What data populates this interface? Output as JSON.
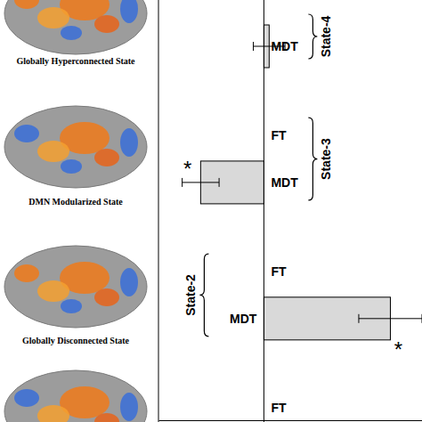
{
  "chart_data": {
    "type": "bar",
    "orientation": "horizontal",
    "categories": [
      "MDT",
      "FT",
      "MDT",
      "FT",
      "MDT",
      "FT"
    ],
    "groups": [
      "State-4",
      "State-3",
      "State-3",
      "State-2",
      "State-2",
      null
    ],
    "values": [
      0.02,
      0,
      -0.24,
      0,
      0.48,
      0
    ],
    "errors": [
      0.06,
      0,
      0.07,
      0,
      0.12,
      0
    ],
    "annotations": [
      null,
      null,
      "*",
      null,
      "*",
      null
    ],
    "color": "#d9d9d9",
    "xlim": [
      -0.4,
      0.6
    ],
    "tick_labels": "y",
    "grid": false
  },
  "image_labels": [
    "Globally Hyperconnected State",
    "DMN Modularized State",
    "Globally Disconnected State"
  ]
}
